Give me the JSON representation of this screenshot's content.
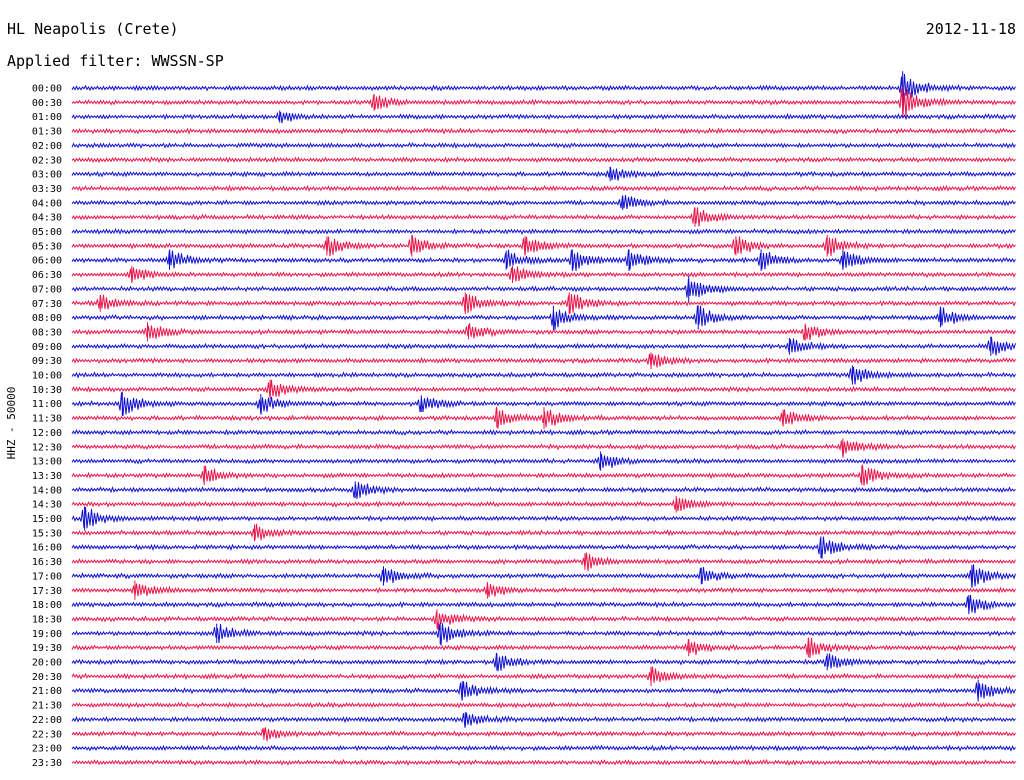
{
  "header": {
    "station": "HL Neapolis (Crete)",
    "date": "2012-11-18",
    "filter": "Applied filter: WWSSN-SP",
    "channel_label": "HHZ - 50000"
  },
  "chart_data": {
    "type": "line",
    "title": "HL Neapolis (Crete)",
    "date": "2012-11-18",
    "filter": "WWSSN-SP",
    "ylabel": "HHZ - 50000",
    "colors": {
      "even_rows": "#1010d0",
      "odd_rows": "#e8164a"
    },
    "row_labels": [
      "00:00",
      "00:30",
      "01:00",
      "01:30",
      "02:00",
      "02:30",
      "03:00",
      "03:30",
      "04:00",
      "04:30",
      "05:00",
      "05:30",
      "06:00",
      "06:30",
      "07:00",
      "07:30",
      "08:00",
      "08:30",
      "09:00",
      "09:30",
      "10:00",
      "10:30",
      "11:00",
      "11:30",
      "12:00",
      "12:30",
      "13:00",
      "13:30",
      "14:00",
      "14:30",
      "15:00",
      "15:30",
      "16:00",
      "16:30",
      "17:00",
      "17:30",
      "18:00",
      "18:30",
      "19:00",
      "19:30",
      "20:00",
      "20:30",
      "21:00",
      "21:30",
      "22:00",
      "22:30",
      "23:00",
      "23:30"
    ],
    "row_duration_minutes": 30,
    "events": [
      {
        "row": 0,
        "minute": 26.4,
        "amp": 1.4
      },
      {
        "row": 1,
        "minute": 9.6,
        "amp": 0.7
      },
      {
        "row": 1,
        "minute": 26.4,
        "amp": 1.3
      },
      {
        "row": 2,
        "minute": 6.6,
        "amp": 0.5
      },
      {
        "row": 6,
        "minute": 17.1,
        "amp": 0.6
      },
      {
        "row": 8,
        "minute": 17.5,
        "amp": 0.6
      },
      {
        "row": 9,
        "minute": 19.8,
        "amp": 0.8
      },
      {
        "row": 11,
        "minute": 8.1,
        "amp": 0.8
      },
      {
        "row": 11,
        "minute": 10.8,
        "amp": 0.9
      },
      {
        "row": 11,
        "minute": 14.4,
        "amp": 0.8
      },
      {
        "row": 11,
        "minute": 21.1,
        "amp": 0.8
      },
      {
        "row": 11,
        "minute": 24.0,
        "amp": 0.9
      },
      {
        "row": 12,
        "minute": 3.1,
        "amp": 0.8
      },
      {
        "row": 12,
        "minute": 13.8,
        "amp": 0.8
      },
      {
        "row": 12,
        "minute": 15.9,
        "amp": 0.9
      },
      {
        "row": 12,
        "minute": 17.7,
        "amp": 0.9
      },
      {
        "row": 12,
        "minute": 21.9,
        "amp": 0.9
      },
      {
        "row": 12,
        "minute": 24.5,
        "amp": 0.8
      },
      {
        "row": 13,
        "minute": 1.9,
        "amp": 0.7
      },
      {
        "row": 13,
        "minute": 14.0,
        "amp": 0.7
      },
      {
        "row": 14,
        "minute": 19.6,
        "amp": 1.1
      },
      {
        "row": 15,
        "minute": 0.9,
        "amp": 0.7
      },
      {
        "row": 15,
        "minute": 12.5,
        "amp": 0.9
      },
      {
        "row": 15,
        "minute": 15.8,
        "amp": 0.9
      },
      {
        "row": 16,
        "minute": 15.3,
        "amp": 1.0
      },
      {
        "row": 16,
        "minute": 19.9,
        "amp": 1.0
      },
      {
        "row": 16,
        "minute": 27.6,
        "amp": 0.8
      },
      {
        "row": 17,
        "minute": 2.4,
        "amp": 0.8
      },
      {
        "row": 17,
        "minute": 12.6,
        "amp": 0.6
      },
      {
        "row": 17,
        "minute": 23.3,
        "amp": 0.7
      },
      {
        "row": 18,
        "minute": 22.8,
        "amp": 0.7
      },
      {
        "row": 18,
        "minute": 29.2,
        "amp": 0.8
      },
      {
        "row": 19,
        "minute": 18.4,
        "amp": 0.7
      },
      {
        "row": 20,
        "minute": 24.8,
        "amp": 0.8
      },
      {
        "row": 21,
        "minute": 6.3,
        "amp": 0.8
      },
      {
        "row": 22,
        "minute": 1.6,
        "amp": 1.0
      },
      {
        "row": 22,
        "minute": 6.0,
        "amp": 0.8
      },
      {
        "row": 22,
        "minute": 11.1,
        "amp": 0.7
      },
      {
        "row": 23,
        "minute": 13.5,
        "amp": 0.8
      },
      {
        "row": 23,
        "minute": 15.0,
        "amp": 0.9
      },
      {
        "row": 23,
        "minute": 22.6,
        "amp": 0.7
      },
      {
        "row": 25,
        "minute": 24.5,
        "amp": 0.7
      },
      {
        "row": 26,
        "minute": 16.8,
        "amp": 0.8
      },
      {
        "row": 27,
        "minute": 4.2,
        "amp": 0.8
      },
      {
        "row": 27,
        "minute": 25.1,
        "amp": 0.8
      },
      {
        "row": 28,
        "minute": 9.0,
        "amp": 0.7
      },
      {
        "row": 29,
        "minute": 19.2,
        "amp": 0.7
      },
      {
        "row": 30,
        "minute": 0.4,
        "amp": 1.0
      },
      {
        "row": 31,
        "minute": 5.8,
        "amp": 0.7
      },
      {
        "row": 32,
        "minute": 23.8,
        "amp": 0.9
      },
      {
        "row": 33,
        "minute": 16.3,
        "amp": 0.7
      },
      {
        "row": 34,
        "minute": 9.9,
        "amp": 0.8
      },
      {
        "row": 34,
        "minute": 20.0,
        "amp": 0.7
      },
      {
        "row": 34,
        "minute": 28.6,
        "amp": 0.9
      },
      {
        "row": 35,
        "minute": 2.0,
        "amp": 0.8
      },
      {
        "row": 35,
        "minute": 13.2,
        "amp": 0.7
      },
      {
        "row": 36,
        "minute": 28.5,
        "amp": 0.8
      },
      {
        "row": 37,
        "minute": 11.6,
        "amp": 0.8
      },
      {
        "row": 38,
        "minute": 4.6,
        "amp": 0.8
      },
      {
        "row": 38,
        "minute": 11.7,
        "amp": 0.9
      },
      {
        "row": 39,
        "minute": 19.6,
        "amp": 0.7
      },
      {
        "row": 39,
        "minute": 23.4,
        "amp": 0.8
      },
      {
        "row": 40,
        "minute": 13.5,
        "amp": 0.7
      },
      {
        "row": 40,
        "minute": 24.0,
        "amp": 0.7
      },
      {
        "row": 41,
        "minute": 18.4,
        "amp": 0.8
      },
      {
        "row": 42,
        "minute": 12.4,
        "amp": 0.8
      },
      {
        "row": 42,
        "minute": 28.8,
        "amp": 0.9
      },
      {
        "row": 44,
        "minute": 12.5,
        "amp": 0.6
      },
      {
        "row": 45,
        "minute": 6.1,
        "amp": 0.5
      }
    ]
  }
}
